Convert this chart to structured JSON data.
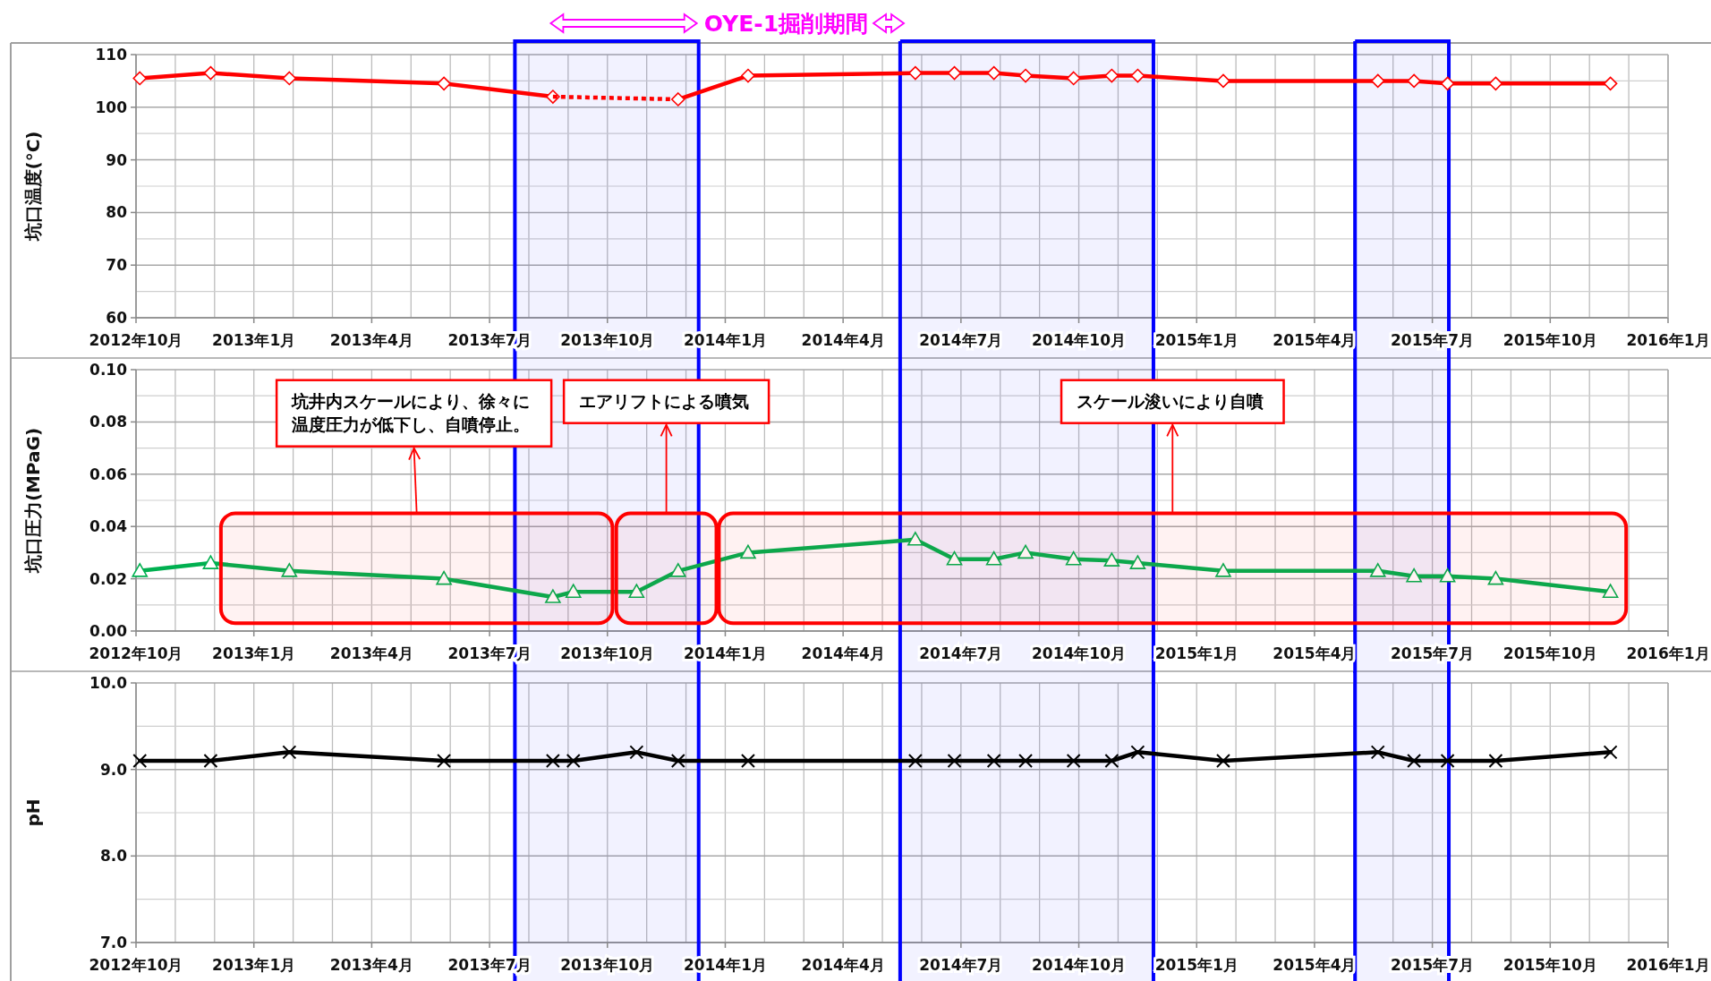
{
  "chart_data": [
    {
      "type": "line",
      "title": "OYE-1掘削期間",
      "ylabel": "坑口温度(°C)",
      "grid": true,
      "xlim": [
        "2012-10",
        "2016-01"
      ],
      "xticks": [
        {
          "value": "2012-10",
          "label": "2012年10月"
        },
        {
          "value": "2013-01",
          "label": "2013年1月"
        },
        {
          "value": "2013-04",
          "label": "2013年4月"
        },
        {
          "value": "2013-07",
          "label": "2013年7月"
        },
        {
          "value": "2013-10",
          "label": "2013年10月"
        },
        {
          "value": "2014-01",
          "label": "2014年1月"
        },
        {
          "value": "2014-04",
          "label": "2014年4月"
        },
        {
          "value": "2014-07",
          "label": "2014年7月"
        },
        {
          "value": "2014-10",
          "label": "2014年10月"
        },
        {
          "value": "2015-01",
          "label": "2015年1月"
        },
        {
          "value": "2015-04",
          "label": "2015年4月"
        },
        {
          "value": "2015-07",
          "label": "2015年7月"
        },
        {
          "value": "2015-10",
          "label": "2015年10月"
        },
        {
          "value": "2016-01",
          "label": "2016年1月"
        }
      ],
      "ylim": [
        60,
        110
      ],
      "yticks": [
        60,
        70,
        80,
        90,
        100,
        110
      ],
      "series": [
        {
          "color": "#ff0000",
          "marker": "diamond",
          "line_style": "solid",
          "x": [
            "2012-10-04",
            "2012-11-28",
            "2013-01-29",
            "2013-05-27",
            "2013-08-20"
          ],
          "values": [
            105.5,
            106.5,
            105.5,
            104.5,
            102
          ]
        },
        {
          "color": "#ff0000",
          "line_style": "dotted",
          "x": [
            "2013-08-20",
            "2013-11-25"
          ],
          "values": [
            102,
            101.5
          ]
        },
        {
          "color": "#ff0000",
          "marker": "diamond",
          "line_style": "solid",
          "x": [
            "2013-11-25",
            "2014-01-19",
            "2014-05-27",
            "2014-06-26",
            "2014-07-27",
            "2014-08-21",
            "2014-09-27",
            "2014-10-27",
            "2014-11-16",
            "2015-01-22",
            "2015-05-20",
            "2015-06-17",
            "2015-07-13",
            "2015-08-20",
            "2015-11-17"
          ],
          "values": [
            101.5,
            106,
            106.5,
            106.5,
            106.5,
            106,
            105.5,
            106,
            106,
            105,
            105,
            105,
            104.5,
            104.5,
            104.5
          ]
        }
      ],
      "bands": [
        {
          "axis": "x",
          "from": "2013-07-21",
          "to": "2013-12-11",
          "color": "#0000ff"
        },
        {
          "axis": "x",
          "from": "2014-05-15",
          "to": "2014-11-28",
          "color": "#0000ff"
        },
        {
          "axis": "x",
          "from": "2015-05-02",
          "to": "2015-07-14",
          "color": "#0000ff"
        }
      ]
    },
    {
      "type": "line",
      "ylabel": "坑口圧力(MPaG)",
      "grid": true,
      "x": [
        "2012-10-04",
        "2012-11-28",
        "2013-01-29",
        "2013-05-27",
        "2013-08-20",
        "2013-09-05",
        "2013-10-24",
        "2013-11-25",
        "2014-01-19",
        "2014-05-27",
        "2014-06-26",
        "2014-07-27",
        "2014-08-21",
        "2014-09-27",
        "2014-10-27",
        "2014-11-16",
        "2015-01-22",
        "2015-05-20",
        "2015-06-17",
        "2015-07-13",
        "2015-08-20",
        "2015-11-17"
      ],
      "xlim": [
        "2012-10",
        "2016-01"
      ],
      "xticks": [
        {
          "value": "2012-10",
          "label": "2012年10月"
        },
        {
          "value": "2013-01",
          "label": "2013年1月"
        },
        {
          "value": "2013-04",
          "label": "2013年4月"
        },
        {
          "value": "2013-07",
          "label": "2013年7月"
        },
        {
          "value": "2013-10",
          "label": "2013年10月"
        },
        {
          "value": "2014-01",
          "label": "2014年1月"
        },
        {
          "value": "2014-04",
          "label": "2014年4月"
        },
        {
          "value": "2014-07",
          "label": "2014年7月"
        },
        {
          "value": "2014-10",
          "label": "2014年10月"
        },
        {
          "value": "2015-01",
          "label": "2015年1月"
        },
        {
          "value": "2015-04",
          "label": "2015年4月"
        },
        {
          "value": "2015-07",
          "label": "2015年7月"
        },
        {
          "value": "2015-10",
          "label": "2015年10月"
        },
        {
          "value": "2016-01",
          "label": "2016年1月"
        }
      ],
      "ylim": [
        0,
        0.1
      ],
      "yticks": [
        {
          "value": 0,
          "label": "0.00"
        },
        {
          "value": 0.02,
          "label": "0.02"
        },
        {
          "value": 0.04,
          "label": "0.04"
        },
        {
          "value": 0.06,
          "label": "0.06"
        },
        {
          "value": 0.08,
          "label": "0.08"
        },
        {
          "value": 0.1,
          "label": "0.10"
        }
      ],
      "series": [
        {
          "color": "#00b050",
          "marker": "triangle",
          "line_style": "solid",
          "values": [
            0.023,
            0.026,
            0.023,
            0.02,
            0.013,
            0.015,
            0.015,
            0.023,
            0.03,
            0.035,
            0.0275,
            0.0275,
            0.03,
            0.0275,
            0.027,
            0.026,
            0.023,
            0.023,
            0.021,
            0.021,
            0.02,
            0.015
          ]
        }
      ],
      "bands": [
        {
          "axis": "x",
          "from": "2013-07-21",
          "to": "2013-12-11",
          "color": "#0000ff"
        },
        {
          "axis": "x",
          "from": "2014-05-15",
          "to": "2014-11-28",
          "color": "#0000ff"
        },
        {
          "axis": "x",
          "from": "2015-05-02",
          "to": "2015-07-14",
          "color": "#0000ff"
        },
        {
          "axis": "x",
          "from": "2012-12-06",
          "to": "2013-10-05",
          "color": "#ff0000",
          "label": "坑井内スケールにより、徐々に温度圧力が低下し、自噴停止。"
        },
        {
          "axis": "x",
          "from": "2013-10-08",
          "to": "2013-12-25",
          "color": "#ff0000",
          "label": "エアリフトによる噴気"
        },
        {
          "axis": "x",
          "from": "2013-12-27",
          "to": "2015-11-29",
          "color": "#ff0000",
          "label": "スケール浚いにより自噴"
        }
      ]
    },
    {
      "type": "line",
      "ylabel": "pH",
      "grid": true,
      "x": [
        "2012-10-04",
        "2012-11-28",
        "2013-01-29",
        "2013-05-27",
        "2013-08-20",
        "2013-09-05",
        "2013-10-24",
        "2013-11-25",
        "2014-01-19",
        "2014-05-27",
        "2014-06-26",
        "2014-07-27",
        "2014-08-21",
        "2014-09-27",
        "2014-10-27",
        "2014-11-16",
        "2015-01-22",
        "2015-05-20",
        "2015-06-17",
        "2015-07-13",
        "2015-08-20",
        "2015-11-17"
      ],
      "xlim": [
        "2012-10",
        "2016-01"
      ],
      "xticks": [
        {
          "value": "2012-10",
          "label": "2012年10月"
        },
        {
          "value": "2013-01",
          "label": "2013年1月"
        },
        {
          "value": "2013-04",
          "label": "2013年4月"
        },
        {
          "value": "2013-07",
          "label": "2013年7月"
        },
        {
          "value": "2013-10",
          "label": "2013年10月"
        },
        {
          "value": "2014-01",
          "label": "2014年1月"
        },
        {
          "value": "2014-04",
          "label": "2014年4月"
        },
        {
          "value": "2014-07",
          "label": "2014年7月"
        },
        {
          "value": "2014-10",
          "label": "2014年10月"
        },
        {
          "value": "2015-01",
          "label": "2015年1月"
        },
        {
          "value": "2015-04",
          "label": "2015年4月"
        },
        {
          "value": "2015-07",
          "label": "2015年7月"
        },
        {
          "value": "2015-10",
          "label": "2015年10月"
        },
        {
          "value": "2016-01",
          "label": "2016年1月"
        }
      ],
      "ylim": [
        7,
        10
      ],
      "yticks": [
        {
          "value": 7,
          "label": "7.0"
        },
        {
          "value": 8,
          "label": "8.0"
        },
        {
          "value": 9,
          "label": "9.0"
        },
        {
          "value": 10,
          "label": "10.0"
        }
      ],
      "series": [
        {
          "color": "#000000",
          "marker": "cross",
          "line_style": "solid",
          "values": [
            9.1,
            9.1,
            9.2,
            9.1,
            9.1,
            9.1,
            9.2,
            9.1,
            9.1,
            9.1,
            9.1,
            9.1,
            9.1,
            9.1,
            9.1,
            9.2,
            9.1,
            9.2,
            9.1,
            9.1,
            9.1,
            9.2
          ]
        }
      ],
      "bands": [
        {
          "axis": "x",
          "from": "2013-07-21",
          "to": "2013-12-11",
          "color": "#0000ff"
        },
        {
          "axis": "x",
          "from": "2014-05-15",
          "to": "2014-11-28",
          "color": "#0000ff"
        },
        {
          "axis": "x",
          "from": "2015-05-02",
          "to": "2015-07-14",
          "color": "#0000ff"
        }
      ]
    }
  ]
}
